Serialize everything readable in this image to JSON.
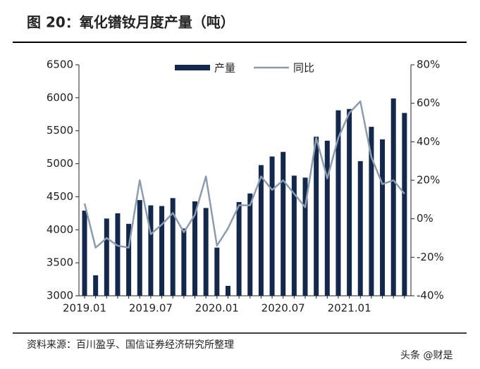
{
  "chart_data": {
    "type": "bar-line",
    "title": "图 20：氧化镨钕月度产量（吨）",
    "source": "资料来源：百川盈孚、国信证券经济研究所整理",
    "watermark": "头条 @财是",
    "categories": [
      "2019.01",
      null,
      null,
      null,
      null,
      null,
      "2019.07",
      null,
      null,
      null,
      null,
      null,
      "2020.01",
      null,
      null,
      null,
      null,
      null,
      "2020.07",
      null,
      null,
      null,
      null,
      null,
      "2021.01",
      null,
      null,
      null,
      null,
      null
    ],
    "series": [
      {
        "name": "产量",
        "color": "#13284b",
        "values": [
          4290,
          3310,
          4170,
          4250,
          4090,
          4450,
          4370,
          4360,
          4480,
          4020,
          4430,
          4330,
          3730,
          3150,
          4420,
          4550,
          4980,
          5110,
          5180,
          4820,
          4790,
          5410,
          5350,
          5810,
          5830,
          5040,
          5560,
          5370,
          5990,
          5770
        ]
      },
      {
        "name": "同比",
        "color": "#8c9cb0",
        "axis": "y2",
        "values": [
          8,
          -15,
          -10,
          -14,
          -15,
          20,
          -8,
          -3,
          3,
          -7,
          2,
          22,
          -14,
          -5,
          7,
          7,
          22,
          15,
          20,
          13,
          6,
          42,
          21,
          42,
          55,
          61,
          32,
          18,
          20,
          13
        ]
      }
    ],
    "ylim": [
      3000,
      6500
    ],
    "yticks": [
      3000,
      3500,
      4000,
      4500,
      5000,
      5500,
      6000,
      6500
    ],
    "y2lim": [
      -40,
      80
    ],
    "y2ticks": [
      {
        "value": -40,
        "label": "-40%"
      },
      {
        "value": -20,
        "label": "-20%"
      },
      {
        "value": 0,
        "label": "0%"
      },
      {
        "value": 20,
        "label": "20%"
      },
      {
        "value": 40,
        "label": "40%"
      },
      {
        "value": 60,
        "label": "60%"
      },
      {
        "value": 80,
        "label": "80%"
      }
    ]
  }
}
